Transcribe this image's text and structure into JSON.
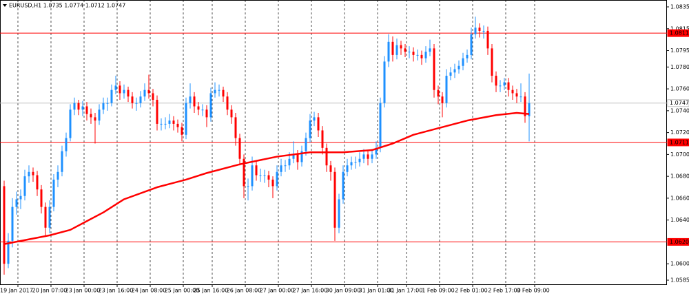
{
  "chart_data": {
    "type": "candlestick",
    "title": "EURUSD,H1 1.0735 1.0774 1.0712 1.0747",
    "up_color": "#1e90ff",
    "down_color": "#ff0000",
    "categories": [
      null,
      null,
      "19 Jan 2017",
      null,
      null,
      null,
      null,
      null,
      null,
      null,
      "20 Jan 07:00",
      null,
      null,
      null,
      null,
      null,
      null,
      null,
      "23 Jan 00:00",
      null,
      null,
      null,
      null,
      null,
      null,
      null,
      "23 Jan 16:00",
      null,
      null,
      null,
      null,
      null,
      null,
      null,
      "24 Jan 08:00",
      null,
      null,
      null,
      null,
      null,
      null,
      null,
      "25 Jan 00:00",
      null,
      null,
      null,
      null,
      null,
      null,
      "25 Jan 16:00",
      null,
      null,
      null,
      null,
      null,
      null,
      null,
      "26 Jan 08:00",
      null,
      null,
      null,
      null,
      null,
      null,
      null,
      "27 Jan 00:00",
      null,
      null,
      null,
      null,
      null,
      null,
      null,
      "27 Jan 16:00",
      null,
      null,
      null,
      null,
      null,
      null,
      null,
      "30 Jan 09:00",
      null,
      null,
      null,
      null,
      null,
      null,
      null,
      "31 Jan 01:00",
      null,
      null,
      null,
      null,
      null,
      null,
      "31 Jan 17:00",
      null,
      null,
      null,
      null,
      null,
      null,
      null,
      "1 Feb 09:00",
      null,
      null,
      null,
      null,
      null,
      null,
      null,
      "2 Feb 01:00",
      null,
      null,
      null,
      null,
      null,
      null,
      null,
      "2 Feb 17:00",
      null,
      null,
      null,
      null,
      null,
      null,
      "3 Feb 09:00"
    ],
    "ohlc": [
      [
        1.0671,
        1.0676,
        1.059,
        1.06
      ],
      [
        1.06,
        1.0628,
        1.0596,
        1.0621
      ],
      [
        1.0621,
        1.066,
        1.0615,
        1.0652
      ],
      [
        1.0652,
        1.0666,
        1.0645,
        1.0659
      ],
      [
        1.0659,
        1.0668,
        1.065,
        1.0662
      ],
      [
        1.0662,
        1.0686,
        1.0658,
        1.068
      ],
      [
        1.068,
        1.069,
        1.0674,
        1.0684
      ],
      [
        1.0684,
        1.0688,
        1.0675,
        1.0681
      ],
      [
        1.0681,
        1.0685,
        1.0662,
        1.0668
      ],
      [
        1.0668,
        1.0672,
        1.0646,
        1.0652
      ],
      [
        1.0652,
        1.0656,
        1.0625,
        1.0633
      ],
      [
        1.0633,
        1.0658,
        1.0628,
        1.0652
      ],
      [
        1.0652,
        1.0682,
        1.0648,
        1.0677
      ],
      [
        1.0677,
        1.069,
        1.067,
        1.0684
      ],
      [
        1.0684,
        1.0708,
        1.068,
        1.0703
      ],
      [
        1.0703,
        1.072,
        1.0698,
        1.0715
      ],
      [
        1.0715,
        1.0746,
        1.0712,
        1.0741
      ],
      [
        1.0741,
        1.0752,
        1.0736,
        1.0747
      ],
      [
        1.0747,
        1.075,
        1.0736,
        1.0741
      ],
      [
        1.0741,
        1.0749,
        1.0735,
        1.0744
      ],
      [
        1.0744,
        1.0748,
        1.0731,
        1.0737
      ],
      [
        1.0737,
        1.0742,
        1.0728,
        1.0734
      ],
      [
        1.0734,
        1.0738,
        1.071,
        1.0731
      ],
      [
        1.0731,
        1.0746,
        1.0727,
        1.0741
      ],
      [
        1.0741,
        1.0752,
        1.0737,
        1.0747
      ],
      [
        1.0747,
        1.0752,
        1.074,
        1.0747
      ],
      [
        1.0747,
        1.0764,
        1.0744,
        1.0759
      ],
      [
        1.0759,
        1.0772,
        1.0755,
        1.0763
      ],
      [
        1.0763,
        1.0767,
        1.075,
        1.0756
      ],
      [
        1.0756,
        1.0764,
        1.0751,
        1.0759
      ],
      [
        1.0759,
        1.0762,
        1.0748,
        1.0753
      ],
      [
        1.0753,
        1.0757,
        1.0742,
        1.0747
      ],
      [
        1.0747,
        1.0752,
        1.074,
        1.0747
      ],
      [
        1.0747,
        1.0758,
        1.0743,
        1.0753
      ],
      [
        1.0753,
        1.0765,
        1.0749,
        1.0759
      ],
      [
        1.0759,
        1.0773,
        1.0751,
        1.0756
      ],
      [
        1.0756,
        1.076,
        1.0744,
        1.075
      ],
      [
        1.075,
        1.0754,
        1.0722,
        1.0728
      ],
      [
        1.0728,
        1.0733,
        1.0722,
        1.0728
      ],
      [
        1.0728,
        1.0734,
        1.0723,
        1.0728
      ],
      [
        1.0728,
        1.0737,
        1.0724,
        1.0731
      ],
      [
        1.0731,
        1.0735,
        1.0722,
        1.0728
      ],
      [
        1.0728,
        1.0732,
        1.072,
        1.0725
      ],
      [
        1.0725,
        1.0729,
        1.0712,
        1.0718
      ],
      [
        1.0718,
        1.0752,
        1.0714,
        1.0747
      ],
      [
        1.0747,
        1.0765,
        1.0742,
        1.0753
      ],
      [
        1.0753,
        1.0757,
        1.0738,
        1.0744
      ],
      [
        1.0744,
        1.0748,
        1.0736,
        1.0741
      ],
      [
        1.0741,
        1.0746,
        1.0735,
        1.0741
      ],
      [
        1.0741,
        1.0745,
        1.0725,
        1.0734
      ],
      [
        1.0734,
        1.0761,
        1.073,
        1.0756
      ],
      [
        1.0756,
        1.0766,
        1.0752,
        1.0759
      ],
      [
        1.0759,
        1.0764,
        1.0753,
        1.0759
      ],
      [
        1.0759,
        1.0762,
        1.0748,
        1.0753
      ],
      [
        1.0753,
        1.0757,
        1.0736,
        1.0741
      ],
      [
        1.0741,
        1.0745,
        1.0728,
        1.0734
      ],
      [
        1.0734,
        1.0738,
        1.0708,
        1.0715
      ],
      [
        1.0715,
        1.0719,
        1.069,
        1.0696
      ],
      [
        1.0696,
        1.07,
        1.066,
        1.0671
      ],
      [
        1.0671,
        1.0678,
        1.0658,
        1.0671
      ],
      [
        1.0671,
        1.0698,
        1.0667,
        1.069
      ],
      [
        1.069,
        1.0694,
        1.0676,
        1.0681
      ],
      [
        1.0681,
        1.0687,
        1.0675,
        1.0681
      ],
      [
        1.0681,
        1.0686,
        1.0674,
        1.0681
      ],
      [
        1.0681,
        1.0685,
        1.067,
        1.0677
      ],
      [
        1.0677,
        1.068,
        1.066,
        1.0671
      ],
      [
        1.0671,
        1.069,
        1.0667,
        1.0684
      ],
      [
        1.0684,
        1.0696,
        1.068,
        1.069
      ],
      [
        1.069,
        1.0695,
        1.0684,
        1.069
      ],
      [
        1.069,
        1.0702,
        1.0686,
        1.0696
      ],
      [
        1.0696,
        1.0712,
        1.0692,
        1.07
      ],
      [
        1.07,
        1.0704,
        1.0686,
        1.0693
      ],
      [
        1.0693,
        1.0708,
        1.0689,
        1.0703
      ],
      [
        1.0703,
        1.072,
        1.0699,
        1.0715
      ],
      [
        1.0715,
        1.0737,
        1.0711,
        1.0731
      ],
      [
        1.0731,
        1.0739,
        1.0726,
        1.0734
      ],
      [
        1.0734,
        1.0738,
        1.0716,
        1.0722
      ],
      [
        1.0722,
        1.0726,
        1.07,
        1.0706
      ],
      [
        1.0706,
        1.071,
        1.0684,
        1.069
      ],
      [
        1.069,
        1.0694,
        1.0676,
        1.0684
      ],
      [
        1.0684,
        1.0688,
        1.0621,
        1.0633
      ],
      [
        1.0633,
        1.0664,
        1.0628,
        1.0659
      ],
      [
        1.0659,
        1.069,
        1.0655,
        1.0684
      ],
      [
        1.0684,
        1.0696,
        1.068,
        1.069
      ],
      [
        1.069,
        1.0698,
        1.0686,
        1.0693
      ],
      [
        1.0693,
        1.0698,
        1.0687,
        1.0693
      ],
      [
        1.0693,
        1.0702,
        1.0689,
        1.0696
      ],
      [
        1.0696,
        1.0705,
        1.0692,
        1.07
      ],
      [
        1.07,
        1.0704,
        1.069,
        1.0696
      ],
      [
        1.0696,
        1.0705,
        1.0692,
        1.07
      ],
      [
        1.07,
        1.0712,
        1.0696,
        1.0706
      ],
      [
        1.0706,
        1.0752,
        1.0702,
        1.0747
      ],
      [
        1.0747,
        1.079,
        1.0743,
        1.0785
      ],
      [
        1.0785,
        1.081,
        1.078,
        1.0803
      ],
      [
        1.0803,
        1.0808,
        1.0785,
        1.0791
      ],
      [
        1.0791,
        1.0806,
        1.0787,
        1.08
      ],
      [
        1.08,
        1.0804,
        1.0791,
        1.0797
      ],
      [
        1.0797,
        1.0801,
        1.0789,
        1.0794
      ],
      [
        1.0794,
        1.0799,
        1.0788,
        1.0794
      ],
      [
        1.0794,
        1.0798,
        1.0785,
        1.0791
      ],
      [
        1.0791,
        1.0796,
        1.0786,
        1.0791
      ],
      [
        1.0791,
        1.0795,
        1.0782,
        1.0788
      ],
      [
        1.0788,
        1.0799,
        1.0784,
        1.0794
      ],
      [
        1.0794,
        1.0805,
        1.079,
        1.0797
      ],
      [
        1.0797,
        1.0801,
        1.0752,
        1.0759
      ],
      [
        1.0759,
        1.0763,
        1.0746,
        1.0753
      ],
      [
        1.0753,
        1.0757,
        1.0734,
        1.0747
      ],
      [
        1.0747,
        1.0778,
        1.0743,
        1.0772
      ],
      [
        1.0772,
        1.078,
        1.0768,
        1.0775
      ],
      [
        1.0775,
        1.0783,
        1.077,
        1.0778
      ],
      [
        1.0778,
        1.0786,
        1.0774,
        1.0781
      ],
      [
        1.0781,
        1.0793,
        1.0777,
        1.0788
      ],
      [
        1.0788,
        1.0796,
        1.0784,
        1.0791
      ],
      [
        1.0791,
        1.0816,
        1.0787,
        1.081
      ],
      [
        1.081,
        1.0826,
        1.0806,
        1.0816
      ],
      [
        1.0816,
        1.082,
        1.0807,
        1.0813
      ],
      [
        1.0813,
        1.0818,
        1.0806,
        1.0813
      ],
      [
        1.0813,
        1.0817,
        1.0791,
        1.0797
      ],
      [
        1.0797,
        1.0801,
        1.0766,
        1.0772
      ],
      [
        1.0772,
        1.0776,
        1.0757,
        1.0763
      ],
      [
        1.0763,
        1.0768,
        1.0757,
        1.0763
      ],
      [
        1.0763,
        1.077,
        1.0759,
        1.0766
      ],
      [
        1.0766,
        1.077,
        1.0753,
        1.0759
      ],
      [
        1.0759,
        1.0763,
        1.075,
        1.0756
      ],
      [
        1.0756,
        1.076,
        1.0747,
        1.0753
      ],
      [
        1.0753,
        1.0765,
        1.0748,
        1.0753
      ],
      [
        1.0753,
        1.0757,
        1.0729,
        1.0735
      ],
      [
        1.0735,
        1.0774,
        1.0712,
        1.0747
      ]
    ],
    "ma": {
      "color": "#ff0000",
      "x": [
        0,
        11,
        16,
        24,
        29,
        37,
        44,
        49,
        57,
        66,
        74,
        82,
        89,
        94,
        99,
        106,
        112,
        119,
        124,
        127
      ],
      "values": [
        1.0618,
        1.0626,
        1.0631,
        1.0647,
        1.0659,
        1.067,
        1.0677,
        1.0683,
        1.0691,
        1.0698,
        1.0702,
        1.0702,
        1.0704,
        1.071,
        1.0718,
        1.0725,
        1.0731,
        1.0736,
        1.0738,
        1.0737
      ]
    },
    "levels": [
      1.0811,
      1.0711,
      {
        "value": 1.062,
        "label": "1.0620"
      }
    ],
    "levels_color": "#ff0000",
    "current": 1.0747,
    "current_color": "#c0c0c0",
    "ylim": [
      1.0585,
      1.0835
    ],
    "yticks": [
      1.0835,
      1.0815,
      1.0795,
      {
        "value": 1.078,
        "label": "1.0780"
      },
      {
        "value": 1.076,
        "label": "1.0760"
      },
      {
        "value": 1.074,
        "label": "1.0740"
      },
      {
        "value": 1.072,
        "label": "1.0720"
      },
      {
        "value": 1.07,
        "label": "1.0700"
      },
      {
        "value": 1.068,
        "label": "1.0680"
      },
      {
        "value": 1.066,
        "label": "1.0660"
      },
      {
        "value": 1.064,
        "label": "1.0640"
      },
      {
        "value": 1.06,
        "label": "1.0600"
      },
      1.0585
    ]
  }
}
